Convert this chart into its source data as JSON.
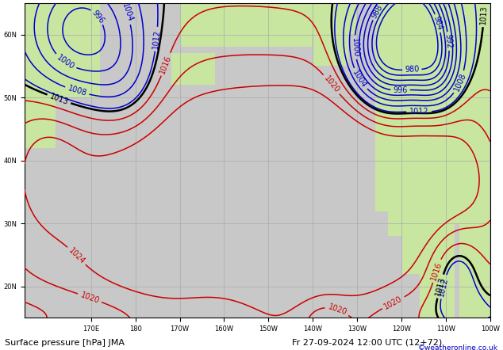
{
  "title": "Surface pressure [hPa] JMA",
  "datetime_label": "Fr 27-09-2024 12:00 UTC (12+72)",
  "copyright": "©weatheronline.co.uk",
  "background_ocean": "#c8c8c8",
  "background_land": "#c8e6a0",
  "grid_color": "#aaaaaa",
  "contour_black_color": "#000000",
  "contour_red_color": "#cc0000",
  "contour_blue_color": "#0000cc",
  "label_fontsize": 7,
  "title_fontsize": 8,
  "lon_min": 155,
  "lon_max": 260,
  "lat_min": 15,
  "lat_max": 65,
  "contour_linewidth_black": 1.8,
  "contour_linewidth_red": 1.1,
  "contour_linewidth_blue": 1.1
}
